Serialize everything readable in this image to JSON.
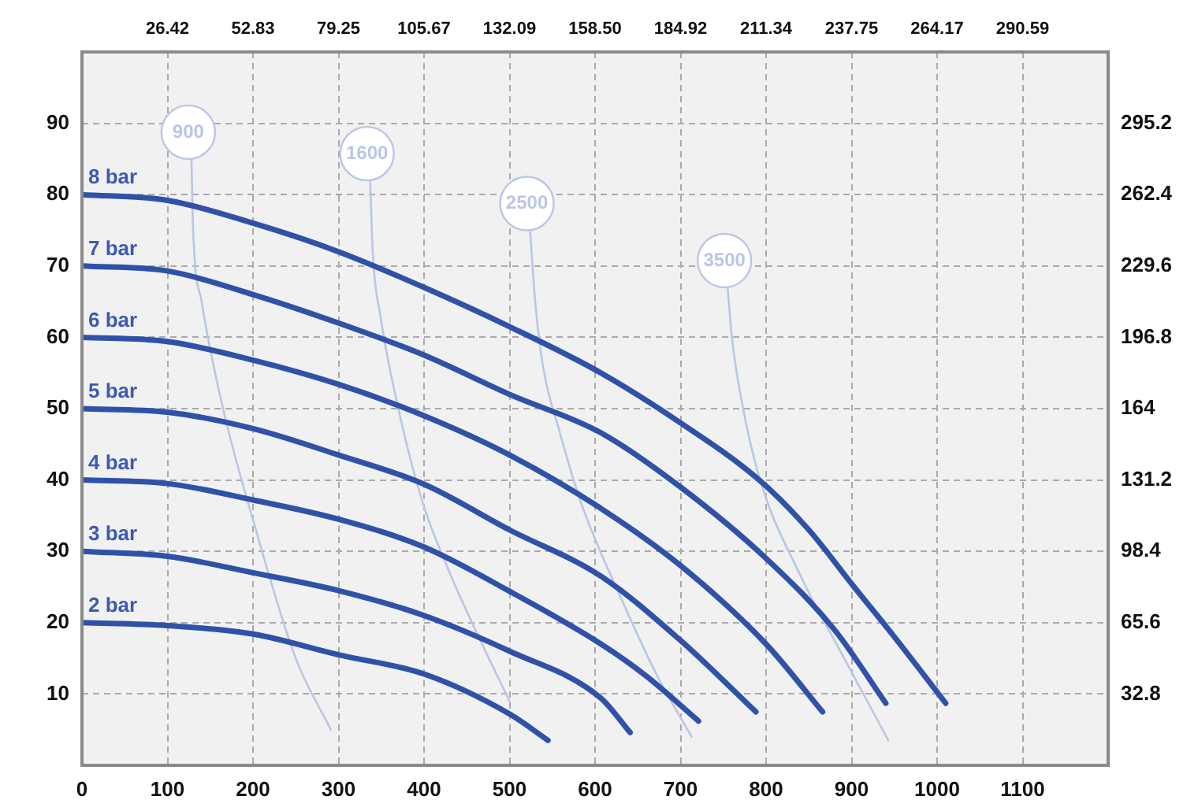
{
  "chart_data": {
    "type": "line",
    "xlim": [
      0,
      1200
    ],
    "xticks": [
      0,
      100,
      200,
      300,
      400,
      500,
      600,
      700,
      800,
      900,
      1000,
      1100
    ],
    "x2lim": [
      0,
      317
    ],
    "x2ticks": [
      26.42,
      52.83,
      79.25,
      105.67,
      132.09,
      {
        "value": 158.5,
        "label": "158.50"
      },
      184.92,
      211.34,
      237.75,
      264.17,
      290.59
    ],
    "ylim": [
      0,
      100
    ],
    "yticks": [
      10,
      20,
      30,
      40,
      50,
      60,
      70,
      80,
      90
    ],
    "y2lim": [
      0,
      328
    ],
    "y2ticks": [
      32.8,
      65.6,
      98.4,
      131.2,
      164,
      196.8,
      229.6,
      262.4,
      295.2
    ],
    "grid": true,
    "legend": false,
    "marker": "none",
    "line_style": "solid",
    "series": [
      {
        "name": "2 bar",
        "color": "#2f52a8",
        "x": [
          0,
          100,
          200,
          300,
          400,
          500,
          545
        ],
        "values": [
          20,
          19.6,
          18.4,
          15.5,
          12.8,
          7.2,
          3.5
        ]
      },
      {
        "name": "3 bar",
        "color": "#2f52a8",
        "x": [
          0,
          100,
          200,
          300,
          400,
          500,
          607,
          641
        ],
        "values": [
          30,
          29.3,
          27,
          24.5,
          21,
          16,
          9.4,
          4.6
        ]
      },
      {
        "name": "4 bar",
        "color": "#2f52a8",
        "x": [
          0,
          100,
          200,
          300,
          400,
          500,
          607,
          660,
          721
        ],
        "values": [
          40,
          39.5,
          37.2,
          34.5,
          30.6,
          24.4,
          17,
          12.5,
          6.2
        ]
      },
      {
        "name": "5 bar",
        "color": "#2f52a8",
        "x": [
          0,
          100,
          200,
          300,
          400,
          500,
          607,
          700,
          788
        ],
        "values": [
          50,
          49.5,
          47.2,
          43.5,
          39.4,
          33,
          26.5,
          17.5,
          7.5
        ]
      },
      {
        "name": "6 bar",
        "color": "#2f52a8",
        "x": [
          0,
          100,
          200,
          300,
          400,
          500,
          607,
          700,
          800,
          866
        ],
        "values": [
          60,
          59.4,
          56.8,
          53.4,
          49,
          43.5,
          36,
          28,
          17,
          7.5
        ]
      },
      {
        "name": "7 bar",
        "color": "#2f52a8",
        "x": [
          0,
          100,
          200,
          300,
          400,
          500,
          607,
          700,
          800,
          880,
          940
        ],
        "values": [
          70,
          69.3,
          66,
          62,
          57.5,
          52,
          46.6,
          39,
          29,
          19,
          8.7
        ]
      },
      {
        "name": "8 bar",
        "color": "#2f52a8",
        "x": [
          0,
          100,
          200,
          300,
          400,
          500,
          607,
          700,
          792,
          850,
          903,
          950,
          1010
        ],
        "values": [
          80,
          79.2,
          76,
          72,
          67,
          61.5,
          55,
          48,
          40,
          33,
          25,
          18,
          8.7
        ]
      },
      {
        "name": "900",
        "color": "#b9c6e6",
        "x": [
          128,
          130,
          140,
          165,
          201,
          250,
          291
        ],
        "values": [
          85,
          75,
          65,
          50,
          34,
          15,
          5
        ]
      },
      {
        "name": "1600",
        "color": "#b9c6e6",
        "x": [
          337,
          340,
          349,
          370,
          398,
          430,
          460,
          500
        ],
        "values": [
          82,
          72,
          63,
          50,
          37,
          27,
          19,
          9
        ]
      },
      {
        "name": "2500",
        "color": "#b9c6e6",
        "x": [
          524,
          530,
          539,
          558,
          583,
          632,
          675,
          713
        ],
        "values": [
          75,
          65,
          56,
          47,
          37,
          23,
          12,
          4
        ]
      },
      {
        "name": "3500",
        "color": "#b9c6e6",
        "x": [
          755,
          760,
          770,
          792,
          841,
          890,
          943
        ],
        "values": [
          67,
          60,
          52,
          40.4,
          26.4,
          15.3,
          3.5
        ]
      }
    ]
  }
}
